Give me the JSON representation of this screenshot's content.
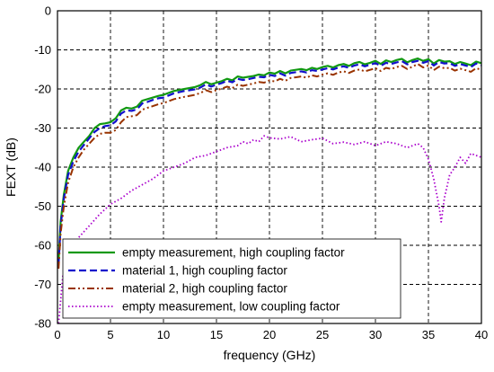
{
  "chart_data": {
    "type": "line",
    "xlabel": "frequency (GHz)",
    "ylabel": "FEXT (dB)",
    "xlim": [
      0,
      40
    ],
    "ylim": [
      -80,
      0
    ],
    "xticks": [
      0,
      5,
      10,
      15,
      20,
      25,
      30,
      35,
      40
    ],
    "yticks": [
      0,
      -10,
      -20,
      -30,
      -40,
      -50,
      -60,
      -70,
      -80
    ],
    "grid": true,
    "legend_position": "bottom-left",
    "series": [
      {
        "name": "empty measurement, high coupling factor",
        "color": "#119911",
        "style": "solid",
        "x": [
          0.1,
          0.3,
          0.6,
          1,
          1.5,
          2,
          2.5,
          3,
          3.5,
          4,
          4.5,
          5,
          5.5,
          6,
          6.5,
          7,
          7.5,
          8,
          8.5,
          9,
          9.5,
          10,
          11,
          12,
          13,
          13.5,
          14,
          14.5,
          15,
          15.5,
          16,
          16.5,
          17,
          17.5,
          18,
          18.5,
          19,
          19.5,
          20,
          20.5,
          21,
          21.5,
          22,
          22.5,
          23,
          23.5,
          24,
          24.5,
          25,
          25.5,
          26,
          26.5,
          27,
          27.5,
          28,
          28.5,
          29,
          29.5,
          30,
          30.5,
          31,
          31.5,
          32,
          32.5,
          33,
          33.5,
          34,
          34.5,
          35,
          35.5,
          36,
          36.5,
          37,
          37.5,
          38,
          38.5,
          39,
          39.5,
          40
        ],
        "y": [
          -64,
          -54,
          -47,
          -41,
          -37.5,
          -35,
          -33.5,
          -32,
          -30,
          -29,
          -28.8,
          -28.5,
          -27.5,
          -25.5,
          -24.8,
          -25,
          -24.5,
          -23,
          -22.6,
          -22.2,
          -21.8,
          -21.5,
          -20.5,
          -20,
          -19.5,
          -19,
          -18.2,
          -18.8,
          -18.4,
          -18,
          -17.4,
          -17.8,
          -16.8,
          -17.1,
          -16.9,
          -16.7,
          -16.3,
          -16.5,
          -15.8,
          -16.1,
          -15.4,
          -16,
          -15.3,
          -15.1,
          -14.9,
          -15.2,
          -14.6,
          -14.9,
          -14.4,
          -14.1,
          -14.5,
          -13.9,
          -13.6,
          -14.1,
          -13.4,
          -13.1,
          -13.7,
          -13.3,
          -12.8,
          -13.6,
          -12.7,
          -13.1,
          -12.6,
          -12.3,
          -13.2,
          -12.6,
          -12.2,
          -12.8,
          -12.4,
          -13.5,
          -12.6,
          -13,
          -12.9,
          -13.6,
          -13.1,
          -13.5,
          -13.9,
          -13,
          -13.4
        ]
      },
      {
        "name": "material 1, high coupling factor",
        "color": "#1111cc",
        "style": "dashed",
        "x": [
          0.1,
          0.3,
          0.6,
          1,
          1.5,
          2,
          2.5,
          3,
          3.5,
          4,
          4.5,
          5,
          5.5,
          6,
          6.5,
          7,
          7.5,
          8,
          8.5,
          9,
          9.5,
          10,
          11,
          12,
          13,
          13.5,
          14,
          14.5,
          15,
          15.5,
          16,
          16.5,
          17,
          17.5,
          18,
          18.5,
          19,
          19.5,
          20,
          20.5,
          21,
          21.5,
          22,
          22.5,
          23,
          23.5,
          24,
          24.5,
          25,
          25.5,
          26,
          26.5,
          27,
          27.5,
          28,
          28.5,
          29,
          29.5,
          30,
          30.5,
          31,
          31.5,
          32,
          32.5,
          33,
          33.5,
          34,
          34.5,
          35,
          35.5,
          36,
          36.5,
          37,
          37.5,
          38,
          38.5,
          39,
          39.5,
          40
        ],
        "y": [
          -65,
          -55,
          -48,
          -42,
          -38.5,
          -36,
          -34.3,
          -32.6,
          -31,
          -30,
          -29.5,
          -29.3,
          -28.3,
          -26.3,
          -25.5,
          -25.6,
          -25.2,
          -23.7,
          -23.3,
          -22.8,
          -22.4,
          -22.2,
          -21.1,
          -20.5,
          -20.1,
          -19.6,
          -18.8,
          -19.4,
          -18.9,
          -18.5,
          -17.9,
          -18.3,
          -17.4,
          -17.7,
          -17.5,
          -17.2,
          -16.9,
          -17,
          -16.4,
          -16.7,
          -16,
          -16.6,
          -15.9,
          -15.7,
          -15.5,
          -15.8,
          -15.2,
          -15.4,
          -15,
          -14.7,
          -15,
          -14.5,
          -14.2,
          -14.6,
          -14,
          -13.7,
          -14.2,
          -13.8,
          -13.4,
          -14.1,
          -13.3,
          -13.6,
          -13.2,
          -12.9,
          -13.7,
          -13.1,
          -12.8,
          -13.3,
          -12.9,
          -14,
          -13.1,
          -13.5,
          -13.4,
          -14.1,
          -13.6,
          -14,
          -14.4,
          -13.5,
          -13.9
        ]
      },
      {
        "name": "material 2, high coupling factor",
        "color": "#993300",
        "style": "dash-dot-dot",
        "x": [
          0.1,
          0.3,
          0.6,
          1,
          1.5,
          2,
          2.5,
          3,
          3.5,
          4,
          4.5,
          5,
          5.5,
          6,
          6.5,
          7,
          7.5,
          8,
          8.5,
          9,
          9.5,
          10,
          11,
          12,
          13,
          13.5,
          14,
          14.5,
          15,
          15.5,
          16,
          16.5,
          17,
          17.5,
          18,
          18.5,
          19,
          19.5,
          20,
          20.5,
          21,
          21.5,
          22,
          22.5,
          23,
          23.5,
          24,
          24.5,
          25,
          25.5,
          26,
          26.5,
          27,
          27.5,
          28,
          28.5,
          29,
          29.5,
          30,
          30.5,
          31,
          31.5,
          32,
          32.5,
          33,
          33.5,
          34,
          34.5,
          35,
          35.5,
          36,
          36.5,
          37,
          37.5,
          38,
          38.5,
          39,
          39.5,
          40
        ],
        "y": [
          -66,
          -57,
          -50,
          -44,
          -40,
          -37.5,
          -35.5,
          -34,
          -32.5,
          -31.5,
          -31.2,
          -31.2,
          -30.5,
          -28.5,
          -27.2,
          -27,
          -26.7,
          -25.3,
          -24.8,
          -24.4,
          -23.9,
          -23.6,
          -22.6,
          -22,
          -21.5,
          -21,
          -20.3,
          -20.8,
          -20.3,
          -19.9,
          -19.4,
          -19.8,
          -18.9,
          -19.2,
          -18.9,
          -18.6,
          -18.2,
          -18.4,
          -17.8,
          -18.1,
          -17.4,
          -17.9,
          -17.2,
          -17,
          -16.8,
          -17.1,
          -16.5,
          -16.8,
          -16.3,
          -16,
          -16.4,
          -15.8,
          -15.5,
          -15.9,
          -15.3,
          -15,
          -15.5,
          -15.1,
          -14.7,
          -15.4,
          -14.6,
          -14.9,
          -14.4,
          -14.1,
          -14.9,
          -14.3,
          -13.6,
          -14.5,
          -14,
          -15.2,
          -14.3,
          -14.7,
          -14.6,
          -15.3,
          -14.8,
          -15.2,
          -15.6,
          -14.7,
          -15.1
        ]
      },
      {
        "name": "empty measurement, low coupling factor",
        "color": "#aa00cc",
        "style": "dotted",
        "x": [
          0.1,
          0.5,
          1,
          1.5,
          2,
          2.5,
          3,
          4,
          5,
          6,
          7,
          8,
          9,
          10,
          11,
          12,
          13,
          14,
          15,
          16,
          17,
          17.5,
          18,
          18.5,
          19,
          19.5,
          20,
          21,
          22,
          23,
          24,
          25,
          26,
          27,
          28,
          29,
          30,
          31,
          32,
          33,
          34,
          34.5,
          35,
          35.5,
          36,
          36.2,
          36.5,
          37,
          37.5,
          38,
          38.5,
          39,
          39.5,
          40
        ],
        "y": [
          -80,
          -68,
          -63,
          -60,
          -58,
          -56.5,
          -55,
          -52,
          -49.5,
          -48,
          -46,
          -44.5,
          -43,
          -41,
          -40,
          -39,
          -37.5,
          -37,
          -36,
          -35,
          -34.5,
          -33.5,
          -34,
          -33,
          -33.5,
          -32,
          -32.5,
          -32.8,
          -32.2,
          -33.5,
          -33,
          -32.6,
          -34,
          -33.6,
          -34.2,
          -33.5,
          -34.5,
          -33.5,
          -34,
          -35,
          -34,
          -35,
          -38,
          -43,
          -50,
          -54,
          -48,
          -42,
          -40,
          -37.5,
          -39,
          -36.5,
          -37,
          -37.5
        ]
      }
    ]
  }
}
